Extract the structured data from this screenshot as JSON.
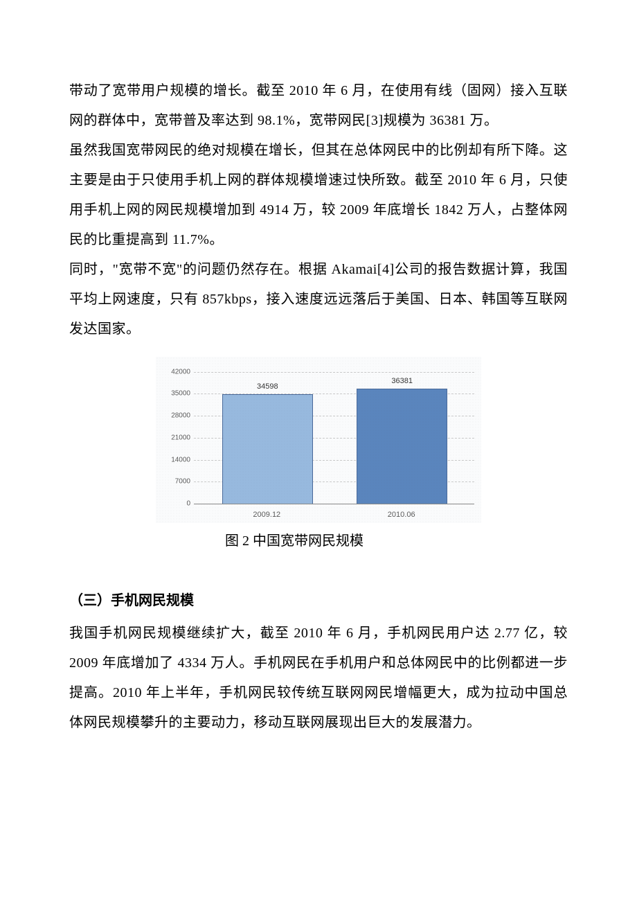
{
  "paragraphs": {
    "p1": "带动了宽带用户规模的增长。截至 2010 年 6 月，在使用有线（固网）接入互联网的群体中，宽带普及率达到 98.1%，宽带网民[3]规模为 36381 万。",
    "p2": "虽然我国宽带网民的绝对规模在增长，但其在总体网民中的比例却有所下降。这主要是由于只使用手机上网的群体规模增速过快所致。截至 2010 年 6 月，只使用手机上网的网民规模增加到 4914 万，较 2009 年底增长 1842 万人，占整体网民的比重提高到 11.7%。",
    "p3": "同时，\"宽带不宽\"的问题仍然存在。根据 Akamai[4]公司的报告数据计算，我国平均上网速度，只有 857kbps，接入速度远远落后于美国、日本、韩国等互联网发达国家。",
    "p4": "我国手机网民规模继续扩大，截至 2010 年 6 月，手机网民用户达 2.77 亿，较 2009 年底增加了 4334 万人。手机网民在手机用户和总体网民中的比例都进一步提高。2010 年上半年，手机网民较传统互联网网民增幅更大，成为拉动中国总体网民规模攀升的主要动力，移动互联网展现出巨大的发展潜力。"
  },
  "section_heading": "（三）手机网民规模",
  "chart": {
    "type": "bar",
    "caption": "图 2 中国宽带网民规模",
    "categories": [
      "2009.12",
      "2010.06"
    ],
    "values": [
      34598,
      36381
    ],
    "value_labels": [
      "34598",
      "36381"
    ],
    "bar_colors": [
      "#97b9de",
      "#5a85bd"
    ],
    "bar_border_color": "#4a6a9a",
    "ylim": [
      0,
      45000
    ],
    "yticks": [
      0,
      7000,
      14000,
      21000,
      28000,
      35000,
      42000
    ],
    "ytick_labels": [
      "0",
      "7000",
      "14000",
      "21000",
      "28000",
      "35000",
      "42000"
    ],
    "background_color": "#fafbfc",
    "background_overlay_opacity": 0.06,
    "grid_color": "#c9c9c9",
    "baseline_color": "#888888",
    "axis_font_color": "#5a5a5a",
    "value_label_color": "#333333",
    "bar_width_pct": 32,
    "bar_positions_pct": [
      10,
      58
    ],
    "label_fontsize": 10
  }
}
